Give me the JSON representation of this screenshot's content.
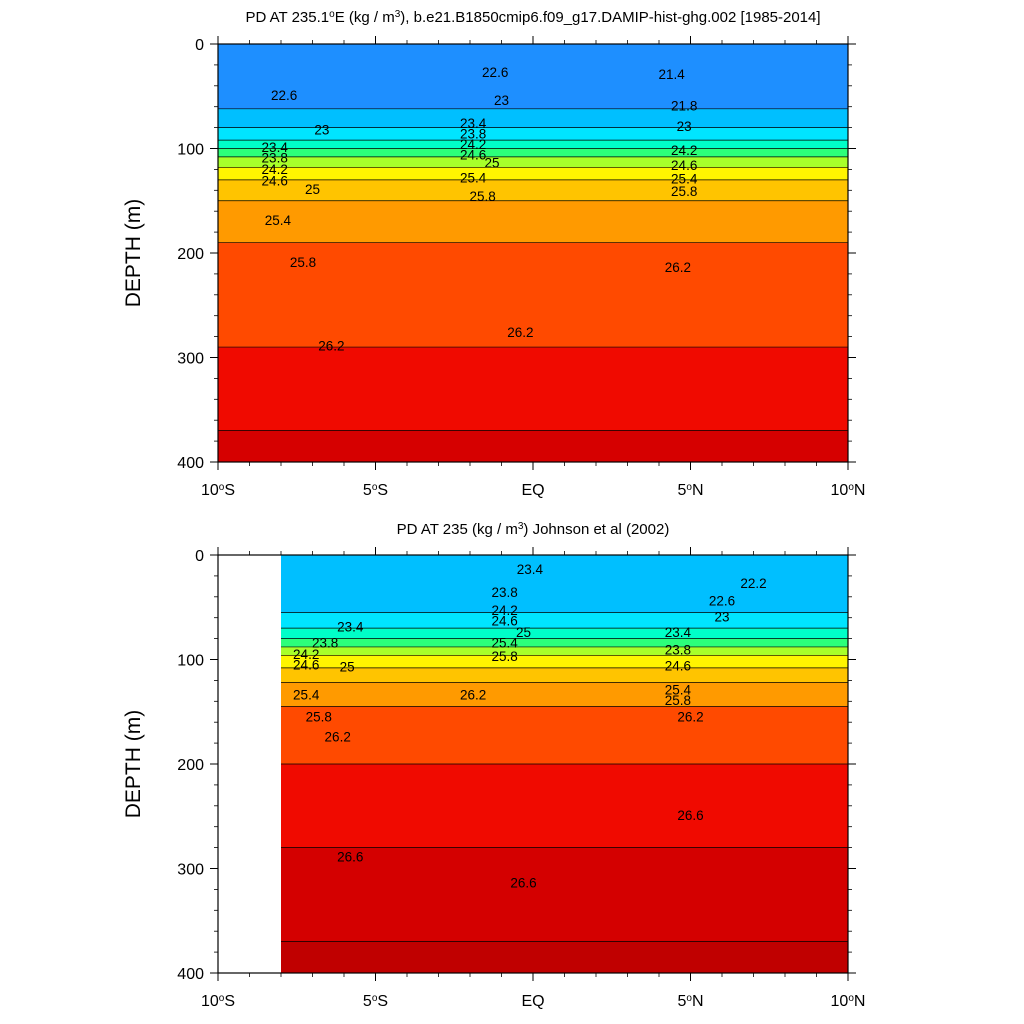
{
  "chart_data": [
    {
      "type": "heatmap",
      "title_parts": [
        "PD AT 235.1",
        "o",
        "E (kg / m",
        "3",
        "), b.e21.B1850cmip6.f09_g17.DAMIP-hist-ghg.002 [1985-2014]"
      ],
      "ylabel": "DEPTH (m)",
      "xlim": [
        -10,
        10
      ],
      "ylim": [
        400,
        0
      ],
      "data_xlim": [
        -10,
        10
      ],
      "x_ticks": [
        {
          "value": -10,
          "num": "10",
          "deg": "o",
          "hem": "S"
        },
        {
          "value": -5,
          "num": "5",
          "deg": "o",
          "hem": "S"
        },
        {
          "value": 0,
          "num": "EQ",
          "deg": "",
          "hem": ""
        },
        {
          "value": 5,
          "num": "5",
          "deg": "o",
          "hem": "N"
        },
        {
          "value": 10,
          "num": "10",
          "deg": "o",
          "hem": "N"
        }
      ],
      "y_ticks": [
        "0",
        "100",
        "200",
        "300",
        "400"
      ],
      "y_tick_values": [
        0,
        100,
        200,
        300,
        400
      ],
      "contour_levels": [
        {
          "depth": 5,
          "label": "22.6",
          "color": "#1e8fff"
        },
        {
          "depth": 62,
          "label": "23",
          "color": "#00bfff"
        },
        {
          "depth": 80,
          "label": "23.4",
          "color": "#00e5ff"
        },
        {
          "depth": 92,
          "label": "23.8",
          "color": "#00ffc8"
        },
        {
          "depth": 100,
          "label": "24.2",
          "color": "#2cff7a"
        },
        {
          "depth": 108,
          "label": "24.6",
          "color": "#a8ff2a"
        },
        {
          "depth": 118,
          "label": "25",
          "color": "#fff500"
        },
        {
          "depth": 130,
          "label": "25.4",
          "color": "#ffc400"
        },
        {
          "depth": 150,
          "label": "25.8",
          "color": "#ff9a00"
        },
        {
          "depth": 190,
          "label": "26.2",
          "color": "#ff4a00"
        },
        {
          "depth": 290,
          "label": "",
          "color": "#f00a00"
        },
        {
          "depth": 370,
          "label": "",
          "color": "#d60000"
        }
      ],
      "contour_labels": [
        {
          "x": -7.9,
          "y": 50,
          "text": "22.6"
        },
        {
          "x": -1.2,
          "y": 28,
          "text": "22.6"
        },
        {
          "x": -6.7,
          "y": 83,
          "text": "23"
        },
        {
          "x": -1.0,
          "y": 55,
          "text": "23"
        },
        {
          "x": -8.2,
          "y": 100,
          "text": "23.4"
        },
        {
          "x": -1.9,
          "y": 77,
          "text": "23.4"
        },
        {
          "x": -8.2,
          "y": 110,
          "text": "23.8"
        },
        {
          "x": -1.9,
          "y": 87,
          "text": "23.8"
        },
        {
          "x": -8.2,
          "y": 121,
          "text": "24.2"
        },
        {
          "x": -1.9,
          "y": 97,
          "text": "24.2"
        },
        {
          "x": -8.2,
          "y": 132,
          "text": "24.6"
        },
        {
          "x": -1.9,
          "y": 107,
          "text": "24.6"
        },
        {
          "x": -7.0,
          "y": 140,
          "text": "25"
        },
        {
          "x": -1.3,
          "y": 115,
          "text": "25"
        },
        {
          "x": -8.1,
          "y": 170,
          "text": "25.4"
        },
        {
          "x": -1.9,
          "y": 129,
          "text": "25.4"
        },
        {
          "x": -7.3,
          "y": 210,
          "text": "25.8"
        },
        {
          "x": -1.6,
          "y": 147,
          "text": "25.8"
        },
        {
          "x": -6.4,
          "y": 290,
          "text": "26.2"
        },
        {
          "x": -0.4,
          "y": 277,
          "text": "26.2"
        },
        {
          "x": 4.8,
          "y": 60,
          "text": "21.8"
        },
        {
          "x": 4.8,
          "y": 80,
          "text": "23"
        },
        {
          "x": 4.8,
          "y": 103,
          "text": "24.2"
        },
        {
          "x": 4.8,
          "y": 117,
          "text": "24.6"
        },
        {
          "x": 4.8,
          "y": 130,
          "text": "25.4"
        },
        {
          "x": 4.8,
          "y": 142,
          "text": "25.8"
        },
        {
          "x": 4.6,
          "y": 215,
          "text": "26.2"
        },
        {
          "x": 4.4,
          "y": 30,
          "text": "21.4"
        }
      ]
    },
    {
      "type": "heatmap",
      "title_parts": [
        "PD AT 235 (kg / m",
        "3",
        ") Johnson et al (2002)"
      ],
      "ylabel": "DEPTH (m)",
      "xlim": [
        -10,
        10
      ],
      "ylim": [
        400,
        0
      ],
      "data_xlim": [
        -8,
        10
      ],
      "x_ticks": [
        {
          "value": -10,
          "num": "10",
          "deg": "o",
          "hem": "S"
        },
        {
          "value": -5,
          "num": "5",
          "deg": "o",
          "hem": "S"
        },
        {
          "value": 0,
          "num": "EQ",
          "deg": "",
          "hem": ""
        },
        {
          "value": 5,
          "num": "5",
          "deg": "o",
          "hem": "N"
        },
        {
          "value": 10,
          "num": "10",
          "deg": "o",
          "hem": "N"
        }
      ],
      "y_ticks": [
        "0",
        "100",
        "200",
        "300",
        "400"
      ],
      "y_tick_values": [
        0,
        100,
        200,
        300,
        400
      ],
      "contour_levels": [
        {
          "depth": 5,
          "label": "23",
          "color": "#00bfff"
        },
        {
          "depth": 55,
          "label": "23.4",
          "color": "#00e5ff"
        },
        {
          "depth": 70,
          "label": "23.8",
          "color": "#00ffc8"
        },
        {
          "depth": 80,
          "label": "24.2",
          "color": "#2cff7a"
        },
        {
          "depth": 88,
          "label": "24.6",
          "color": "#a8ff2a"
        },
        {
          "depth": 96,
          "label": "25",
          "color": "#fff500"
        },
        {
          "depth": 108,
          "label": "25.4",
          "color": "#ffc400"
        },
        {
          "depth": 122,
          "label": "25.8",
          "color": "#ff9a00"
        },
        {
          "depth": 145,
          "label": "26.2",
          "color": "#ff4a00"
        },
        {
          "depth": 200,
          "label": "",
          "color": "#f00a00"
        },
        {
          "depth": 280,
          "label": "26.6",
          "color": "#d40000"
        },
        {
          "depth": 370,
          "label": "",
          "color": "#c00000"
        }
      ],
      "contour_labels": [
        {
          "x": -0.1,
          "y": 15,
          "text": "23.4"
        },
        {
          "x": -5.8,
          "y": 70,
          "text": "23.4"
        },
        {
          "x": -0.9,
          "y": 37,
          "text": "23.8"
        },
        {
          "x": -6.6,
          "y": 85,
          "text": "23.8"
        },
        {
          "x": -0.9,
          "y": 54,
          "text": "24.2"
        },
        {
          "x": -7.2,
          "y": 96,
          "text": "24.2"
        },
        {
          "x": -0.9,
          "y": 64,
          "text": "24.6"
        },
        {
          "x": -7.2,
          "y": 106,
          "text": "24.6"
        },
        {
          "x": -0.3,
          "y": 75,
          "text": "25"
        },
        {
          "x": -5.9,
          "y": 108,
          "text": "25"
        },
        {
          "x": -0.9,
          "y": 85,
          "text": "25.4"
        },
        {
          "x": -7.2,
          "y": 135,
          "text": "25.4"
        },
        {
          "x": -0.9,
          "y": 98,
          "text": "25.8"
        },
        {
          "x": -6.8,
          "y": 156,
          "text": "25.8"
        },
        {
          "x": -1.9,
          "y": 135,
          "text": "26.2"
        },
        {
          "x": -6.2,
          "y": 175,
          "text": "26.2"
        },
        {
          "x": 5.0,
          "y": 156,
          "text": "26.2"
        },
        {
          "x": -5.8,
          "y": 290,
          "text": "26.6"
        },
        {
          "x": -0.3,
          "y": 315,
          "text": "26.6"
        },
        {
          "x": 5.0,
          "y": 250,
          "text": "26.6"
        },
        {
          "x": 6.0,
          "y": 45,
          "text": "22.6"
        },
        {
          "x": 6.0,
          "y": 60,
          "text": "23"
        },
        {
          "x": 4.6,
          "y": 75,
          "text": "23.4"
        },
        {
          "x": 4.6,
          "y": 92,
          "text": "23.8"
        },
        {
          "x": 4.6,
          "y": 107,
          "text": "24.6"
        },
        {
          "x": 4.6,
          "y": 130,
          "text": "25.4"
        },
        {
          "x": 4.6,
          "y": 140,
          "text": "25.8"
        },
        {
          "x": 7.0,
          "y": 28,
          "text": "22.2"
        }
      ]
    }
  ]
}
